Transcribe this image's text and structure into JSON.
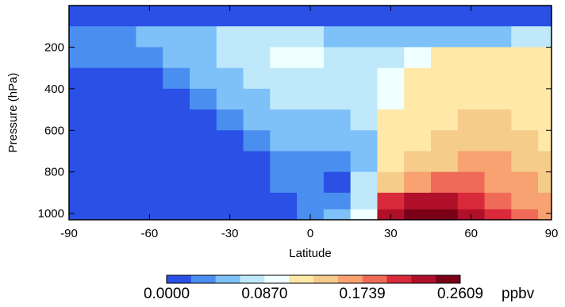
{
  "chart_data": {
    "type": "heatmap",
    "title": "",
    "xlabel": "Latitude",
    "ylabel": "Pressure (hPa)",
    "xlim": [
      -90,
      90
    ],
    "ylim": [
      1030,
      0
    ],
    "x_ticks": [
      "-90",
      "-60",
      "-30",
      "0",
      "30",
      "60",
      "90"
    ],
    "y_ticks": [
      "200",
      "400",
      "600",
      "800",
      "1000"
    ],
    "colorbar": {
      "tick_labels": [
        "0.0000",
        "0.0870",
        "0.1739",
        "0.2609"
      ],
      "tick_values": [
        0.0,
        0.087,
        0.1739,
        0.2609
      ],
      "range": [
        0.0,
        0.2609
      ],
      "unit": "ppbv",
      "n_levels": 12,
      "colors": [
        "#2a50e6",
        "#4a8ff0",
        "#7ec0f8",
        "#bfe9fb",
        "#f0ffff",
        "#ffe8a8",
        "#f6cc8a",
        "#f7a270",
        "#ef6b58",
        "#d82a3a",
        "#b0102a",
        "#7a0018"
      ]
    },
    "latitude": [
      -90,
      -80,
      -70,
      -60,
      -50,
      -40,
      -30,
      -20,
      -10,
      0,
      10,
      20,
      30,
      40,
      50,
      60,
      70,
      80,
      90
    ],
    "pressure": [
      50,
      150,
      250,
      350,
      450,
      550,
      650,
      750,
      850,
      950,
      1010
    ],
    "values_ppbv": [
      [
        0.01,
        0.01,
        0.01,
        0.01,
        0.01,
        0.01,
        0.01,
        0.01,
        0.01,
        0.01,
        0.01,
        0.01,
        0.01,
        0.01,
        0.01,
        0.01,
        0.01,
        0.01,
        0.01
      ],
      [
        0.03,
        0.03,
        0.03,
        0.05,
        0.06,
        0.06,
        0.07,
        0.07,
        0.07,
        0.07,
        0.06,
        0.06,
        0.05,
        0.05,
        0.05,
        0.06,
        0.06,
        0.07,
        0.08
      ],
      [
        0.03,
        0.03,
        0.03,
        0.04,
        0.05,
        0.06,
        0.07,
        0.08,
        0.09,
        0.09,
        0.08,
        0.08,
        0.08,
        0.1,
        0.11,
        0.12,
        0.12,
        0.12,
        0.12
      ],
      [
        0.01,
        0.01,
        0.01,
        0.02,
        0.04,
        0.05,
        0.06,
        0.07,
        0.08,
        0.08,
        0.08,
        0.08,
        0.09,
        0.11,
        0.12,
        0.13,
        0.13,
        0.13,
        0.13
      ],
      [
        0.01,
        0.01,
        0.01,
        0.01,
        0.02,
        0.04,
        0.05,
        0.06,
        0.07,
        0.07,
        0.07,
        0.08,
        0.1,
        0.12,
        0.13,
        0.13,
        0.13,
        0.13,
        0.13
      ],
      [
        0.01,
        0.01,
        0.01,
        0.01,
        0.01,
        0.02,
        0.04,
        0.05,
        0.06,
        0.06,
        0.06,
        0.07,
        0.11,
        0.13,
        0.13,
        0.14,
        0.14,
        0.13,
        0.13
      ],
      [
        0.01,
        0.01,
        0.01,
        0.01,
        0.01,
        0.01,
        0.02,
        0.04,
        0.05,
        0.05,
        0.05,
        0.06,
        0.12,
        0.13,
        0.14,
        0.15,
        0.15,
        0.14,
        0.13
      ],
      [
        0.01,
        0.01,
        0.01,
        0.01,
        0.01,
        0.01,
        0.01,
        0.02,
        0.04,
        0.04,
        0.03,
        0.06,
        0.12,
        0.14,
        0.15,
        0.16,
        0.16,
        0.15,
        0.14
      ],
      [
        0.01,
        0.01,
        0.01,
        0.01,
        0.01,
        0.01,
        0.01,
        0.01,
        0.03,
        0.04,
        0.02,
        0.07,
        0.15,
        0.17,
        0.18,
        0.18,
        0.17,
        0.16,
        0.15
      ],
      [
        0.01,
        0.01,
        0.01,
        0.01,
        0.01,
        0.01,
        0.01,
        0.01,
        0.02,
        0.03,
        0.04,
        0.08,
        0.2,
        0.22,
        0.22,
        0.21,
        0.19,
        0.17,
        0.16
      ],
      [
        0.01,
        0.01,
        0.01,
        0.01,
        0.01,
        0.02,
        0.01,
        0.02,
        0.01,
        0.04,
        0.06,
        0.1,
        0.23,
        0.24,
        0.25,
        0.23,
        0.2,
        0.18,
        0.17
      ]
    ]
  }
}
